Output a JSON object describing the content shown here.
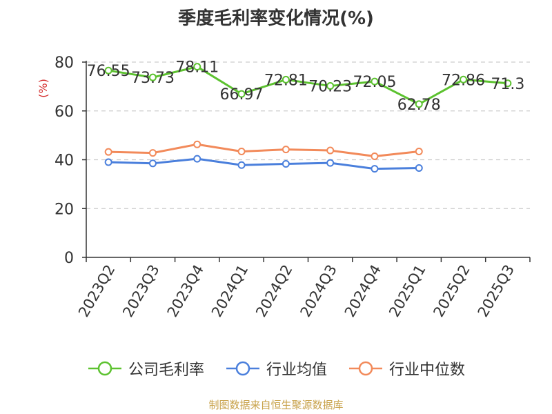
{
  "chart_data": {
    "type": "line",
    "title": "季度毛利率变化情况(%)",
    "ylabel": "(%)",
    "ylim": [
      0,
      80
    ],
    "yticks": [
      0,
      20,
      40,
      60,
      80
    ],
    "grid": true,
    "legend_position": "bottom",
    "categories": [
      "2023Q2",
      "2023Q3",
      "2023Q4",
      "2024Q1",
      "2024Q2",
      "2024Q3",
      "2024Q4",
      "2025Q1",
      "2025Q2",
      "2025Q3"
    ],
    "series": [
      {
        "name": "公司毛利率",
        "color": "#5cc22f",
        "values": [
          76.55,
          73.73,
          78.11,
          66.97,
          72.81,
          70.23,
          72.05,
          62.78,
          72.86,
          71.3
        ],
        "labels": [
          "76.55",
          "73.73",
          "78.11",
          "66.97",
          "72.81",
          "70.23",
          "72.05",
          "62.78",
          "72.86",
          "71.3"
        ]
      },
      {
        "name": "行业均值",
        "color": "#4a7fdc",
        "values": [
          39.0,
          38.5,
          40.4,
          37.8,
          38.3,
          38.7,
          36.3,
          36.6,
          null,
          null
        ]
      },
      {
        "name": "行业中位数",
        "color": "#f28a5a",
        "values": [
          43.2,
          42.8,
          46.3,
          43.4,
          44.2,
          43.8,
          41.4,
          43.4,
          null,
          null
        ]
      }
    ]
  },
  "source": "制图数据来自恒生聚源数据库"
}
